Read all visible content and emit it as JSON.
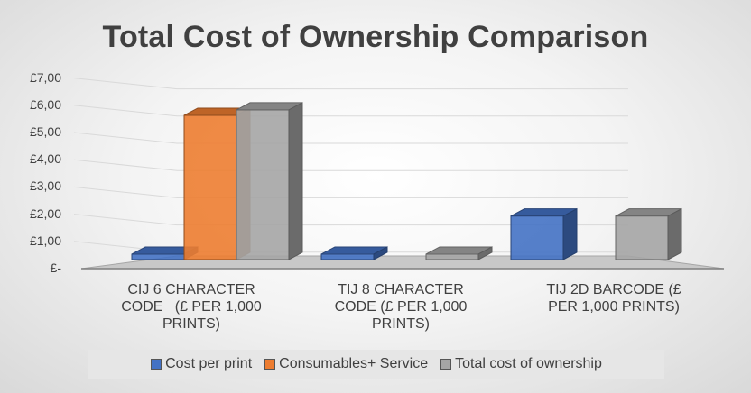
{
  "chart_data": {
    "type": "bar",
    "title": "Total Cost of Ownership Comparison",
    "categories": [
      "CIJ 6 CHARACTER CODE   (£ PER 1,000 PRINTS)",
      "TIJ 8 CHARACTER CODE (£ PER 1,000 PRINTS)",
      "TIJ 2D BARCODE (£ PER 1,000 PRINTS)"
    ],
    "category_lines": [
      [
        "CIJ 6 CHARACTER",
        "CODE   (£ PER 1,000",
        "PRINTS)"
      ],
      [
        "TIJ 8 CHARACTER",
        "CODE (£ PER 1,000",
        "PRINTS)"
      ],
      [
        "TIJ 2D BARCODE (£",
        "PER 1,000 PRINTS)"
      ]
    ],
    "series": [
      {
        "name": "Cost per print",
        "values": [
          0.2,
          0.2,
          1.6
        ],
        "color": "#4472c4"
      },
      {
        "name": "Consumables+ Service",
        "values": [
          5.3,
          0,
          0
        ],
        "color": "#ed7d31"
      },
      {
        "name": "Total cost of ownership",
        "values": [
          5.5,
          0.2,
          1.6
        ],
        "color": "#a5a5a5"
      }
    ],
    "y_ticks": [
      "£-",
      "£1,00",
      "£2,00",
      "£3,00",
      "£4,00",
      "£5,00",
      "£6,00",
      "£7,00"
    ],
    "ylim": [
      0,
      7
    ],
    "grid": true,
    "legend_position": "bottom",
    "style": "3d-column"
  }
}
